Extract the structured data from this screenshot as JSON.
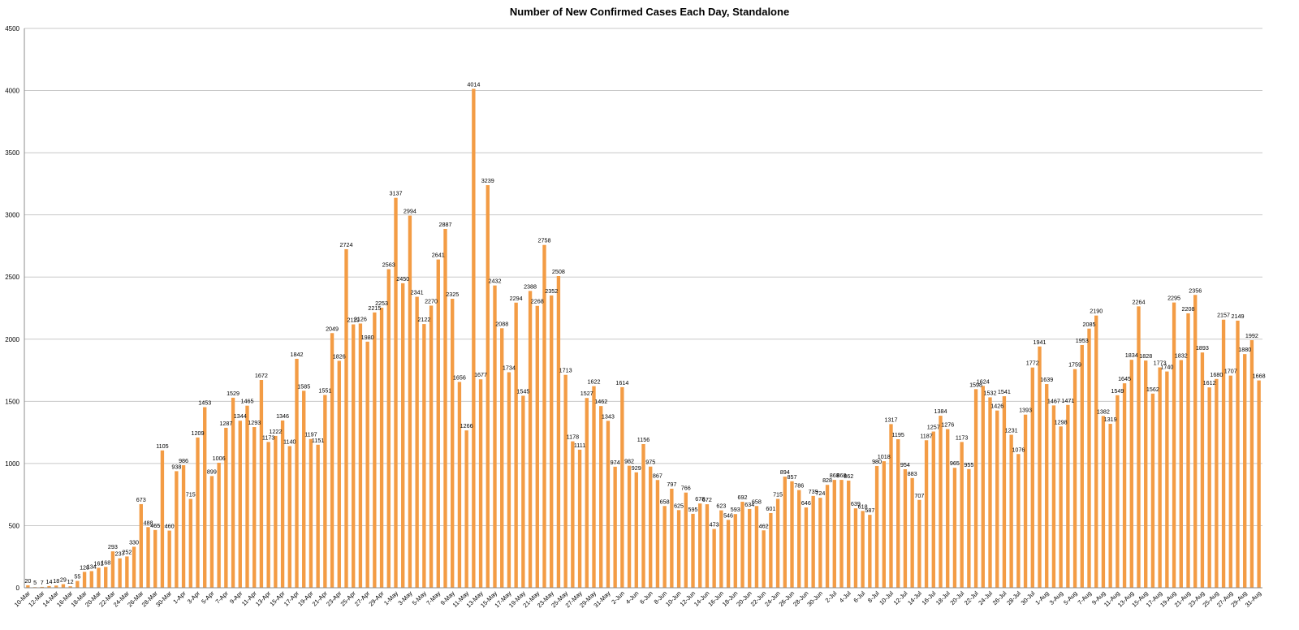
{
  "chart_data": {
    "type": "bar",
    "title": "Number of New Confirmed Cases Each Day, Standalone",
    "xlabel": "",
    "ylabel": "",
    "ylim": [
      0,
      4500
    ],
    "yticks": [
      0,
      500,
      1000,
      1500,
      2000,
      2500,
      3000,
      3500,
      4000,
      4500
    ],
    "grid": true,
    "legend": "none",
    "bar_color": "#F39C45",
    "first_date": "10-Mar",
    "categories": [
      "10-Mar",
      "11-Mar",
      "12-Mar",
      "13-Mar",
      "14-Mar",
      "15-Mar",
      "16-Mar",
      "17-Mar",
      "18-Mar",
      "19-Mar",
      "20-Mar",
      "21-Mar",
      "22-Mar",
      "23-Mar",
      "24-Mar",
      "25-Mar",
      "26-Mar",
      "27-Mar",
      "28-Mar",
      "29-Mar",
      "30-Mar",
      "31-Mar",
      "1-Apr",
      "2-Apr",
      "3-Apr",
      "4-Apr",
      "5-Apr",
      "6-Apr",
      "7-Apr",
      "8-Apr",
      "9-Apr",
      "10-Apr",
      "11-Apr",
      "12-Apr",
      "13-Apr",
      "14-Apr",
      "15-Apr",
      "16-Apr",
      "17-Apr",
      "18-Apr",
      "19-Apr",
      "20-Apr",
      "21-Apr",
      "22-Apr",
      "23-Apr",
      "24-Apr",
      "25-Apr",
      "26-Apr",
      "27-Apr",
      "28-Apr",
      "29-Apr",
      "30-Apr",
      "1-May",
      "2-May",
      "3-May",
      "4-May",
      "5-May",
      "6-May",
      "7-May",
      "8-May",
      "9-May",
      "10-May",
      "11-May",
      "12-May",
      "13-May",
      "14-May",
      "15-May",
      "16-May",
      "17-May",
      "18-May",
      "19-May",
      "20-May",
      "21-May",
      "22-May",
      "23-May",
      "24-May",
      "25-May",
      "26-May",
      "27-May",
      "28-May",
      "29-May",
      "30-May",
      "31-May",
      "1-Jun",
      "2-Jun",
      "3-Jun",
      "4-Jun",
      "5-Jun",
      "6-Jun",
      "7-Jun",
      "8-Jun",
      "9-Jun",
      "10-Jun",
      "11-Jun",
      "12-Jun",
      "13-Jun",
      "14-Jun",
      "15-Jun",
      "16-Jun",
      "17-Jun",
      "18-Jun",
      "19-Jun",
      "20-Jun",
      "21-Jun",
      "22-Jun",
      "23-Jun",
      "24-Jun",
      "25-Jun",
      "26-Jun",
      "27-Jun",
      "28-Jun",
      "29-Jun",
      "30-Jun",
      "1-Jul",
      "2-Jul",
      "3-Jul",
      "4-Jul",
      "5-Jul",
      "6-Jul",
      "7-Jul",
      "8-Jul",
      "9-Jul",
      "10-Jul",
      "11-Jul",
      "12-Jul",
      "13-Jul",
      "14-Jul",
      "15-Jul",
      "16-Jul",
      "17-Jul",
      "18-Jul",
      "19-Jul",
      "20-Jul",
      "21-Jul",
      "22-Jul",
      "23-Jul",
      "24-Jul",
      "25-Jul",
      "26-Jul",
      "27-Jul",
      "28-Jul",
      "29-Jul",
      "30-Jul",
      "31-Jul",
      "1-Aug",
      "2-Aug",
      "3-Aug",
      "4-Aug",
      "5-Aug",
      "6-Aug",
      "7-Aug",
      "8-Aug",
      "9-Aug",
      "10-Aug",
      "11-Aug",
      "12-Aug",
      "13-Aug",
      "14-Aug",
      "15-Aug",
      "16-Aug",
      "17-Aug",
      "18-Aug",
      "19-Aug",
      "20-Aug",
      "21-Aug",
      "22-Aug",
      "23-Aug",
      "24-Aug",
      "25-Aug",
      "26-Aug",
      "27-Aug",
      "28-Aug",
      "29-Aug",
      "30-Aug",
      "31-Aug"
    ],
    "values": [
      20,
      5,
      7,
      14,
      18,
      29,
      12,
      55,
      128,
      134,
      161,
      168,
      293,
      237,
      252,
      330,
      673,
      488,
      465,
      1105,
      460,
      938,
      986,
      715,
      1209,
      1453,
      899,
      1006,
      1287,
      1529,
      1344,
      1465,
      1293,
      1672,
      1173,
      1222,
      1346,
      1140,
      1842,
      1585,
      1197,
      1151,
      1551,
      2049,
      1826,
      2724,
      2119,
      2126,
      1980,
      2215,
      2253,
      2563,
      3137,
      2450,
      2994,
      2341,
      2122,
      2270,
      2641,
      2887,
      2325,
      1656,
      1266,
      4014,
      1677,
      3239,
      2432,
      2088,
      1734,
      2294,
      1545,
      2388,
      2268,
      2758,
      2352,
      2508,
      1713,
      1178,
      1111,
      1527,
      1622,
      1462,
      1343,
      974,
      1614,
      982,
      929,
      1156,
      975,
      867,
      658,
      797,
      625,
      766,
      595,
      678,
      672,
      473,
      623,
      546,
      593,
      692,
      634,
      658,
      462,
      601,
      715,
      894,
      857,
      786,
      646,
      739,
      724,
      828,
      868,
      868,
      862,
      639,
      618,
      587,
      980,
      1018,
      1317,
      1195,
      954,
      883,
      707,
      1187,
      1257,
      1384,
      1276,
      965,
      1173,
      955,
      1598,
      1624,
      1532,
      1426,
      1541,
      1231,
      1076,
      1393,
      1772,
      1941,
      1639,
      1467,
      1298,
      1471,
      1759,
      1953,
      2085,
      2190,
      1382,
      1319,
      1549,
      1645,
      1834,
      2264,
      1828,
      1562,
      1773,
      1740,
      2295,
      1832,
      2208,
      2356,
      1893,
      1612,
      1680,
      2157,
      1707,
      2149,
      1880,
      1992,
      1668
    ]
  }
}
